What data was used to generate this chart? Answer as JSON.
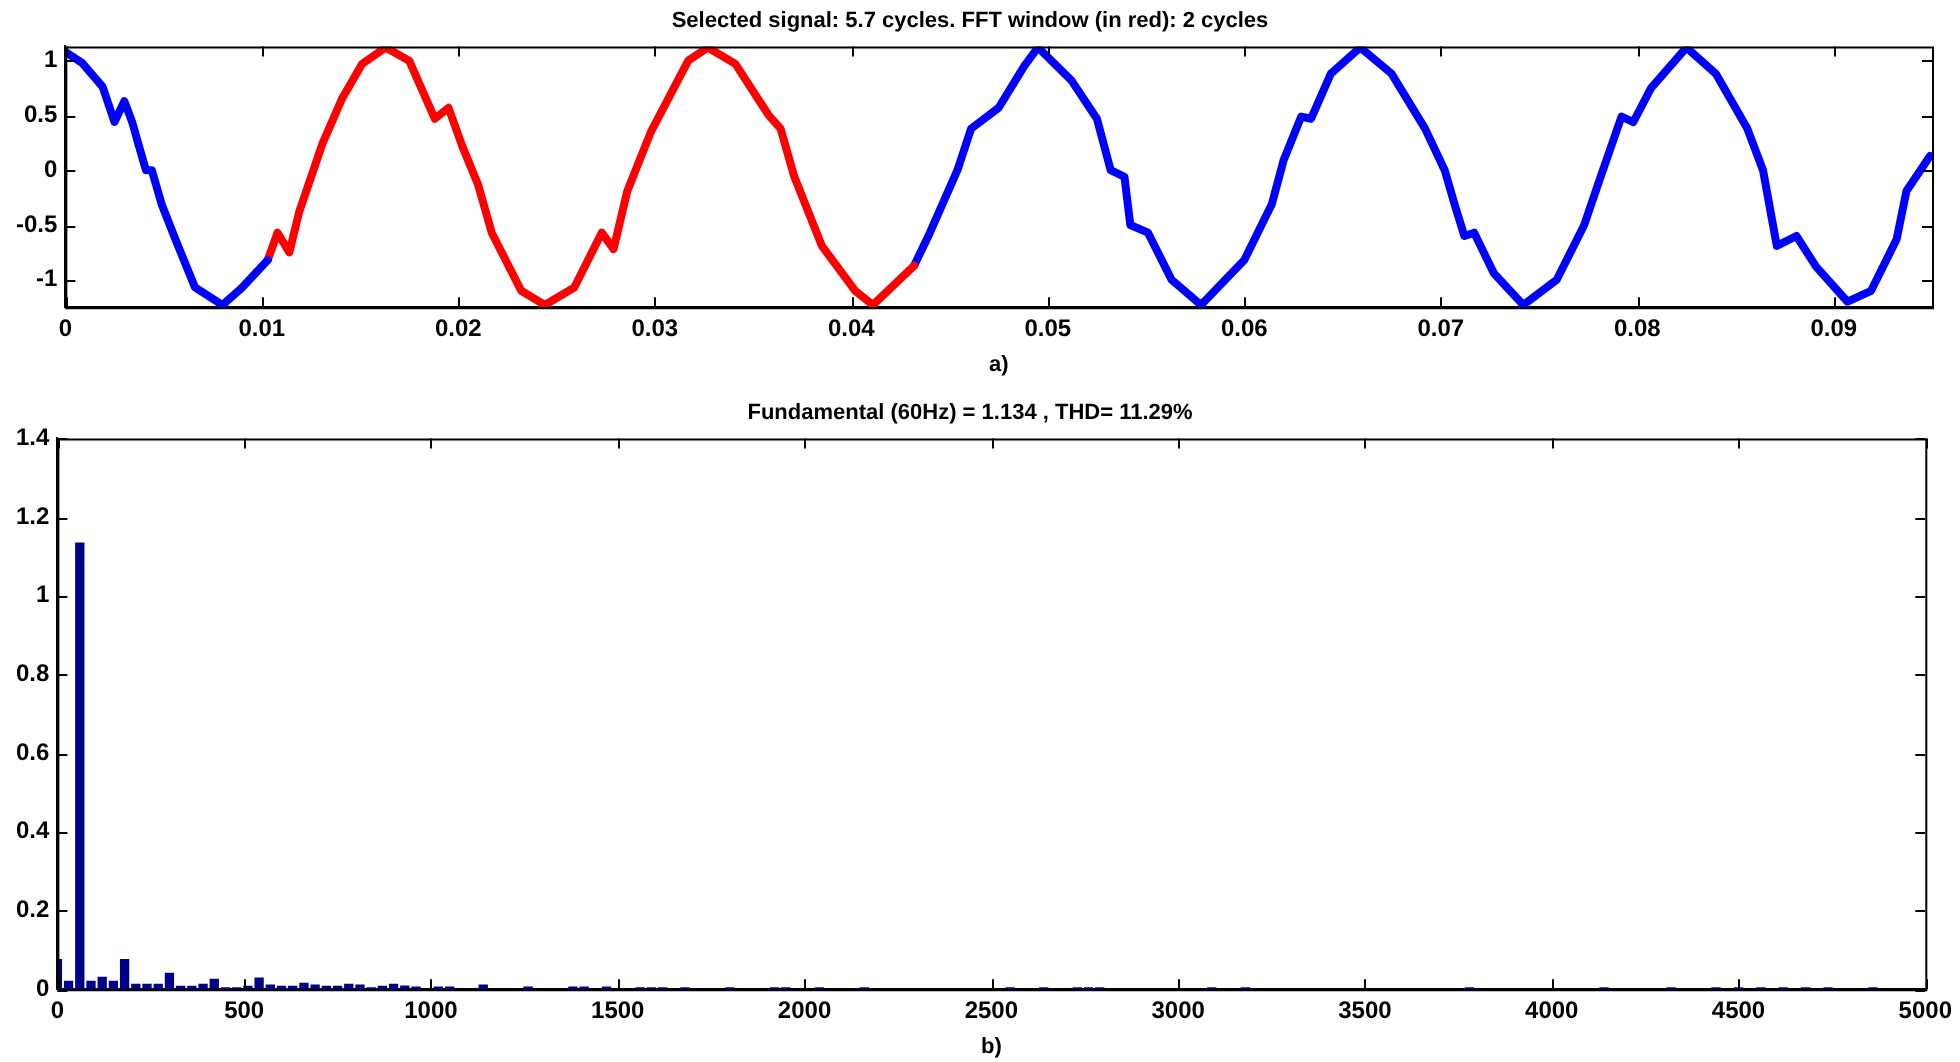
{
  "chart_data": [
    {
      "type": "line",
      "title": "Selected signal: 5.7 cycles. FFT window (in red): 2 cycles",
      "xlabel": "a)",
      "xlim": [
        0,
        0.095
      ],
      "xticks": [
        0,
        0.01,
        0.02,
        0.03,
        0.04,
        0.05,
        0.06,
        0.07,
        0.08,
        0.09
      ],
      "ylim": [
        -1.25,
        1.13
      ],
      "yticks": [
        -1,
        -0.5,
        0,
        0.5,
        1
      ],
      "legend": false,
      "series": [
        {
          "color": "#0000ff",
          "x": [
            0,
            0.00085,
            0.0019,
            0.0025,
            0.003,
            0.0034,
            0.0037,
            0.0041,
            0.0044,
            0.0049,
            0.0056,
            0.0066,
            0.008,
            0.009,
            0.0103
          ],
          "values": [
            1.08,
            0.98,
            0.76,
            0.44,
            0.63,
            0.44,
            0.25,
            0,
            0,
            -0.31,
            -0.63,
            -1.07,
            -1.23,
            -1.07,
            -0.82
          ]
        },
        {
          "color": "#ff0000",
          "x": [
            0.0103,
            0.0108,
            0.0114,
            0.0119,
            0.0131,
            0.0141,
            0.0151,
            0.0163,
            0.0175,
            0.0188,
            0.0195,
            0.0202,
            0.021,
            0.0217,
            0.0232,
            0.0244,
            0.0259,
            0.0273,
            0.0279,
            0.0286,
            0.0298,
            0.0317,
            0.0327,
            0.0341,
            0.0358,
            0.0364,
            0.0371,
            0.0385,
            0.0402,
            0.0411,
            0.0432
          ],
          "values": [
            -0.82,
            -0.57,
            -0.75,
            -0.38,
            0.25,
            0.66,
            0.97,
            1.12,
            1.0,
            0.47,
            0.57,
            0.22,
            -0.13,
            -0.57,
            -1.1,
            -1.23,
            -1.07,
            -0.57,
            -0.72,
            -0.19,
            0.35,
            1.0,
            1.12,
            0.97,
            0.5,
            0.38,
            -0.06,
            -0.69,
            -1.1,
            -1.23,
            -0.87
          ]
        },
        {
          "color": "#0000ff",
          "x": [
            0.0432,
            0.044,
            0.0454,
            0.0461,
            0.0475,
            0.0488,
            0.0495,
            0.0512,
            0.0525,
            0.0532,
            0.0539,
            0.0542,
            0.0551,
            0.0563,
            0.0578,
            0.06,
            0.0614,
            0.062,
            0.0629,
            0.0634,
            0.0644,
            0.0659,
            0.0675,
            0.0692,
            0.0702,
            0.0707,
            0.0712,
            0.0717,
            0.0727,
            0.0742,
            0.0759,
            0.0773,
            0.078,
            0.0792,
            0.0798,
            0.0807,
            0.0825,
            0.084,
            0.0856,
            0.0864,
            0.0871,
            0.0881,
            0.0891,
            0.0907,
            0.0919,
            0.0932,
            0.0937,
            0.0949
          ],
          "values": [
            -0.87,
            -0.57,
            0,
            0.38,
            0.57,
            0.95,
            1.12,
            0.82,
            0.47,
            0,
            -0.06,
            -0.5,
            -0.57,
            -1.0,
            -1.23,
            -0.82,
            -0.31,
            0.09,
            0.49,
            0.47,
            0.88,
            1.12,
            0.88,
            0.38,
            0,
            -0.31,
            -0.6,
            -0.57,
            -0.94,
            -1.23,
            -1.0,
            -0.5,
            -0.13,
            0.49,
            0.44,
            0.75,
            1.12,
            0.88,
            0.38,
            0,
            -0.69,
            -0.6,
            -0.88,
            -1.2,
            -1.1,
            -0.63,
            -0.19,
            0.13
          ]
        }
      ]
    },
    {
      "type": "bar",
      "title": "Fundamental (60Hz) = 1.134 , THD= 11.29%",
      "xlabel": "b)",
      "xlim": [
        0,
        5000
      ],
      "xticks": [
        0,
        500,
        1000,
        1500,
        2000,
        2500,
        3000,
        3500,
        4000,
        4500,
        5000
      ],
      "ylim": [
        0,
        1.4
      ],
      "yticks": [
        0,
        0.2,
        0.4,
        0.6,
        0.8,
        1,
        1.2,
        1.4
      ],
      "legend": false,
      "color": "#00008b",
      "x": [
        0,
        30,
        60,
        90,
        120,
        150,
        180,
        210,
        240,
        270,
        300,
        330,
        360,
        390,
        420,
        450,
        480,
        510,
        540,
        570,
        600,
        630,
        660,
        690,
        720,
        750,
        780,
        810,
        840,
        870,
        900,
        930,
        960,
        1020,
        1050,
        1140,
        1260,
        1380,
        1410,
        1470,
        1560,
        1590,
        1620,
        1680,
        1800,
        1920,
        1950,
        2040,
        2160,
        2550,
        2640,
        2730,
        2760,
        2790,
        3090,
        3180,
        3780,
        4140,
        4320,
        4440,
        4500,
        4560,
        4620,
        4680,
        4740,
        4860
      ],
      "values": [
        0.075,
        0.02,
        1.134,
        0.02,
        0.03,
        0.02,
        0.075,
        0.012,
        0.012,
        0.012,
        0.04,
        0.007,
        0.007,
        0.012,
        0.025,
        0.003,
        0.003,
        0.007,
        0.028,
        0.01,
        0.007,
        0.007,
        0.015,
        0.01,
        0.007,
        0.007,
        0.012,
        0.01,
        0.003,
        0.007,
        0.012,
        0.008,
        0.005,
        0.005,
        0.005,
        0.01,
        0.005,
        0.005,
        0.005,
        0.005,
        0.003,
        0.003,
        0.003,
        0.003,
        0.003,
        0.003,
        0.003,
        0.003,
        0.003,
        0.003,
        0.003,
        0.003,
        0.003,
        0.003,
        0.003,
        0.003,
        0.003,
        0.003,
        0.003,
        0.003,
        0.003,
        0.003,
        0.003,
        0.003,
        0.003,
        0.003
      ]
    }
  ]
}
